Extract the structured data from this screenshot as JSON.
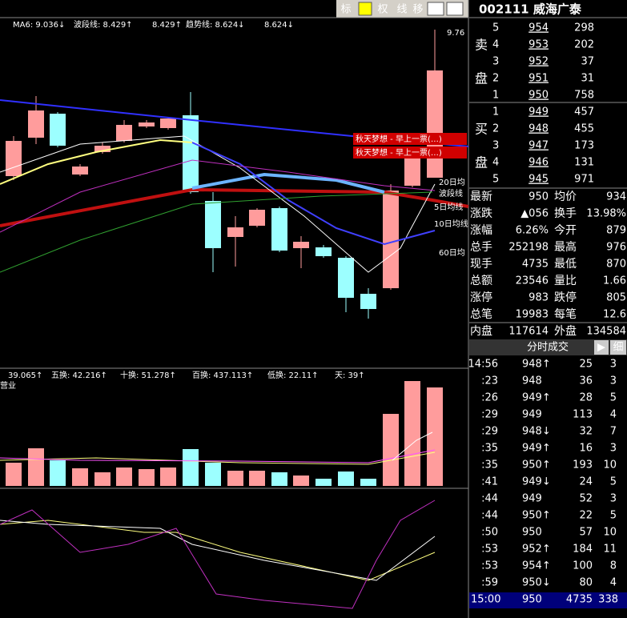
{
  "toolbar": {
    "buttons": [
      "标",
      "权",
      "线",
      "移"
    ]
  },
  "header": {
    "title": "002111 威海广泰"
  },
  "indicators": {
    "main": [
      "MA6: 9.036↓",
      "波段线: 8.429↑",
      "8.429↑",
      "趋势线: 8.624↓",
      "8.624↓"
    ],
    "volume": [
      "39.065↑",
      "五换: 42.216↑",
      "十换: 51.278↑",
      "百换: 437.113↑",
      "低换: 22.11↑",
      "天: 39↑"
    ],
    "volume_side": "营业"
  },
  "chart_labels": {
    "high": "9.76",
    "signals": [
      "秋天梦想 - 早上一票(…)",
      "秋天梦想 - 早上一票(…)"
    ],
    "ma": [
      "波段线",
      "5日均线",
      "10日均线",
      "20日均",
      "60日均"
    ]
  },
  "order_book": {
    "sell_label": [
      "卖",
      "盘"
    ],
    "sell": [
      [
        "5",
        "954",
        "298"
      ],
      [
        "4",
        "953",
        "202"
      ],
      [
        "3",
        "952",
        "37"
      ],
      [
        "2",
        "951",
        "31"
      ],
      [
        "1",
        "950",
        "758"
      ]
    ],
    "buy_label": [
      "买",
      "盘"
    ],
    "buy": [
      [
        "1",
        "949",
        "457"
      ],
      [
        "2",
        "948",
        "455"
      ],
      [
        "3",
        "947",
        "173"
      ],
      [
        "4",
        "946",
        "131"
      ],
      [
        "5",
        "945",
        "971"
      ]
    ]
  },
  "stats": [
    [
      "最新",
      "950",
      "均价",
      "934"
    ],
    [
      "涨跌",
      "▲056",
      "换手",
      "13.98%"
    ],
    [
      "涨幅",
      "6.26%",
      "今开",
      "879"
    ],
    [
      "总手",
      "252198",
      "最高",
      "976"
    ],
    [
      "现手",
      "4735",
      "最低",
      "870"
    ],
    [
      "总额",
      "23546",
      "量比",
      "1.66"
    ],
    [
      "涨停",
      "983",
      "跌停",
      "805"
    ],
    [
      "总笔",
      "19983",
      "每笔",
      "12.6"
    ],
    [
      "内盘",
      "117614",
      "外盘",
      "134584"
    ]
  ],
  "trades": {
    "title": "分时成交",
    "buttons": [
      "▶",
      "细"
    ],
    "rows": [
      [
        "14:56",
        "948↑",
        "25",
        "3"
      ],
      [
        ":23",
        "948",
        "36",
        "3"
      ],
      [
        ":26",
        "949↑",
        "28",
        "5"
      ],
      [
        ":29",
        "949",
        "113",
        "4"
      ],
      [
        ":29",
        "948↓",
        "32",
        "7"
      ],
      [
        ":35",
        "949↑",
        "16",
        "3"
      ],
      [
        ":35",
        "950↑",
        "193",
        "10"
      ],
      [
        ":41",
        "949↓",
        "24",
        "5"
      ],
      [
        ":44",
        "949",
        "52",
        "3"
      ],
      [
        ":44",
        "950↑",
        "22",
        "5"
      ],
      [
        ":50",
        "950",
        "57",
        "10"
      ],
      [
        ":53",
        "952↑",
        "184",
        "11"
      ],
      [
        ":53",
        "954↑",
        "100",
        "8"
      ],
      [
        ":59",
        "950↓",
        "80",
        "4"
      ]
    ],
    "last": [
      "15:00",
      "950",
      "4735",
      "338"
    ]
  }
}
